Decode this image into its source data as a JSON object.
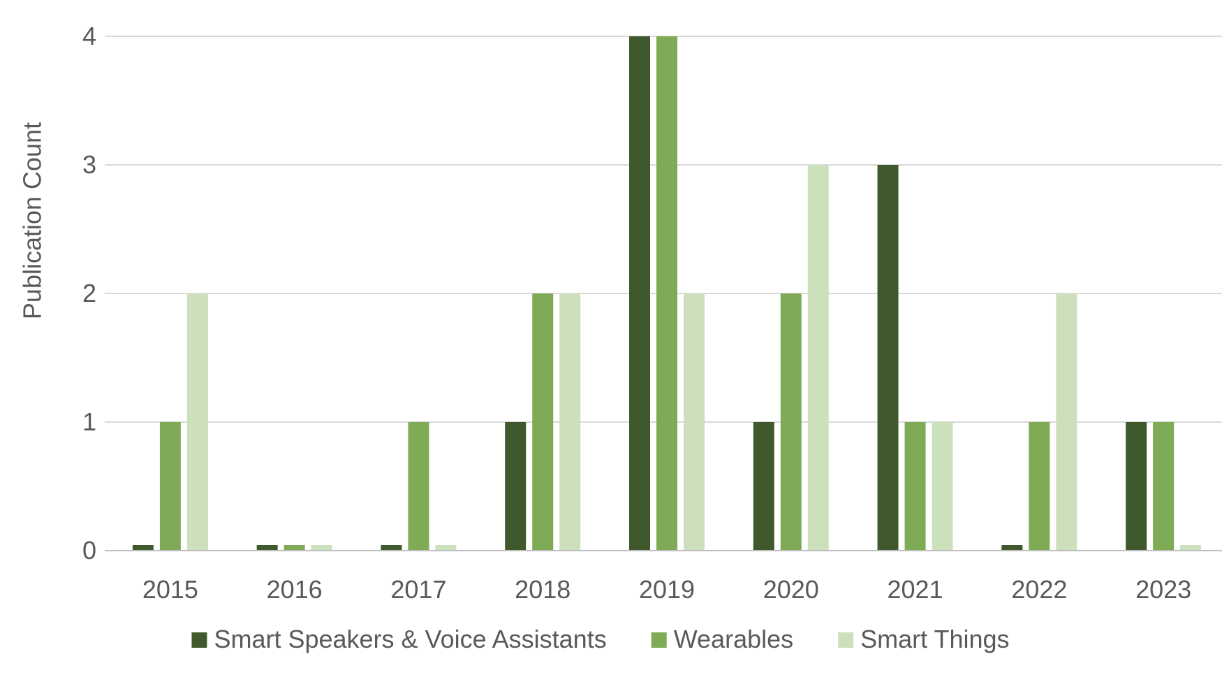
{
  "chart_data": {
    "type": "bar",
    "title": "",
    "xlabel": "",
    "ylabel": "Publication Count",
    "ylim": [
      0,
      4
    ],
    "yticks": [
      0,
      1,
      2,
      3,
      4
    ],
    "grid": true,
    "legend_position": "bottom",
    "categories": [
      "2015",
      "2016",
      "2017",
      "2018",
      "2019",
      "2020",
      "2021",
      "2022",
      "2023"
    ],
    "series": [
      {
        "name": "Smart Speakers & Voice Assistants",
        "color": "#3f582c",
        "values": [
          0,
          0,
          0,
          1,
          4,
          1,
          3,
          0,
          1
        ]
      },
      {
        "name": "Wearables",
        "color": "#7fab56",
        "values": [
          1,
          0,
          1,
          2,
          4,
          2,
          1,
          1,
          1
        ]
      },
      {
        "name": "Smart Things",
        "color": "#cde0bc",
        "values": [
          2,
          0,
          0,
          2,
          2,
          3,
          1,
          2,
          0
        ]
      }
    ]
  }
}
